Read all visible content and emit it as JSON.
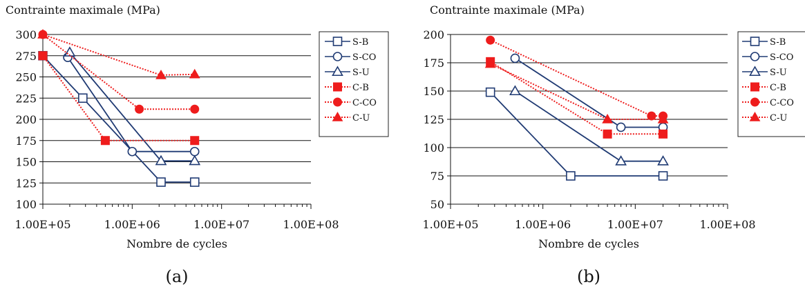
{
  "chart_data": [
    {
      "type": "line",
      "caption": "(a)",
      "ylabel": "Contrainte maximale (MPa)",
      "xlabel": "Nombre de cycles",
      "xscale": "log",
      "xlim": [
        100000,
        100000000
      ],
      "ylim": [
        100,
        300
      ],
      "yticks": [
        100,
        125,
        150,
        175,
        200,
        225,
        250,
        275,
        300
      ],
      "xtick_values": [
        100000,
        1000000,
        10000000,
        100000000
      ],
      "xtick_labels": [
        "1.00E+05",
        "1.00E+06",
        "1.00E+07",
        "1.00E+08"
      ],
      "grid": "horizontal",
      "legend_position": "right",
      "series": [
        {
          "name": "S-B",
          "color": "#1f3a73",
          "style": "solid",
          "marker": "square-open",
          "points": [
            [
              100000,
              275
            ],
            [
              280000,
              225
            ],
            [
              2100000,
              126
            ],
            [
              5000000,
              126
            ]
          ]
        },
        {
          "name": "S-CO",
          "color": "#1f3a73",
          "style": "solid",
          "marker": "circle-open",
          "points": [
            [
              190000,
              273
            ],
            [
              1000000,
              162
            ],
            [
              5000000,
              162
            ]
          ]
        },
        {
          "name": "S-U",
          "color": "#1f3a73",
          "style": "solid",
          "marker": "triangle-open",
          "points": [
            [
              200000,
              279
            ],
            [
              2100000,
              151
            ],
            [
              5000000,
              151
            ]
          ]
        },
        {
          "name": "C-B",
          "color": "#ee1c1c",
          "style": "dotted",
          "marker": "square-filled",
          "points": [
            [
              100000,
              275
            ],
            [
              500000,
              175
            ],
            [
              5000000,
              175
            ]
          ]
        },
        {
          "name": "C-CO",
          "color": "#ee1c1c",
          "style": "dotted",
          "marker": "circle-filled",
          "points": [
            [
              100000,
              300
            ],
            [
              1200000,
              212
            ],
            [
              5000000,
              212
            ]
          ]
        },
        {
          "name": "C-U",
          "color": "#ee1c1c",
          "style": "dotted",
          "marker": "triangle-filled",
          "points": [
            [
              100000,
              300
            ],
            [
              2100000,
              252
            ],
            [
              5000000,
              253
            ]
          ]
        }
      ]
    },
    {
      "type": "line",
      "caption": "(b)",
      "ylabel": "Contrainte maximale (MPa)",
      "xlabel": "Nombre de cycles",
      "xscale": "log",
      "xlim": [
        100000,
        100000000
      ],
      "ylim": [
        50,
        200
      ],
      "yticks": [
        50,
        75,
        100,
        125,
        150,
        175,
        200
      ],
      "xtick_values": [
        100000,
        1000000,
        10000000,
        100000000
      ],
      "xtick_labels": [
        "1.00E+05",
        "1.00E+06",
        "1.00E+07",
        "1.00E+08"
      ],
      "grid": "horizontal",
      "legend_position": "right",
      "series": [
        {
          "name": "S-B",
          "color": "#1f3a73",
          "style": "solid",
          "marker": "square-open",
          "points": [
            [
              270000,
              149
            ],
            [
              2000000,
              75
            ],
            [
              20000000,
              75
            ]
          ]
        },
        {
          "name": "S-CO",
          "color": "#1f3a73",
          "style": "solid",
          "marker": "circle-open",
          "points": [
            [
              500000,
              179
            ],
            [
              7000000,
              118
            ],
            [
              20000000,
              118
            ]
          ]
        },
        {
          "name": "S-U",
          "color": "#1f3a73",
          "style": "solid",
          "marker": "triangle-open",
          "points": [
            [
              500000,
              150
            ],
            [
              7000000,
              88
            ],
            [
              20000000,
              88
            ]
          ]
        },
        {
          "name": "C-B",
          "color": "#ee1c1c",
          "style": "dotted",
          "marker": "square-filled",
          "points": [
            [
              270000,
              176
            ],
            [
              5000000,
              112
            ],
            [
              20000000,
              112
            ]
          ]
        },
        {
          "name": "C-CO",
          "color": "#ee1c1c",
          "style": "dotted",
          "marker": "circle-filled",
          "points": [
            [
              270000,
              195
            ],
            [
              15000000,
              128
            ],
            [
              20000000,
              128
            ]
          ]
        },
        {
          "name": "C-U",
          "color": "#ee1c1c",
          "style": "dotted",
          "marker": "triangle-filled",
          "points": [
            [
              270000,
              174
            ],
            [
              5000000,
              125
            ],
            [
              20000000,
              125
            ]
          ]
        }
      ]
    }
  ]
}
